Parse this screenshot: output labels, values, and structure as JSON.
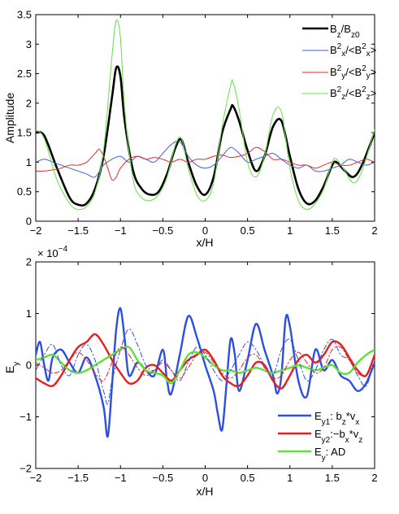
{
  "chart_data": [
    {
      "type": "line",
      "xlabel": "x/H",
      "ylabel": "Amplitude",
      "xlim": [
        -2,
        2
      ],
      "ylim": [
        0,
        3.5
      ],
      "xticks": [
        "−2",
        "−1.5",
        "−1",
        "−0.5",
        "0",
        "0.5",
        "1",
        "1.5",
        "2"
      ],
      "yticks": [
        "0",
        "0.5",
        "1",
        "1.5",
        "2",
        "2.5",
        "3",
        "3.5"
      ],
      "legend_position": "top-right",
      "series": [
        {
          "name": "Bz/Bz0",
          "color": "#000000",
          "width": 2.6,
          "x": [
            -2,
            -1.9,
            -1.75,
            -1.6,
            -1.5,
            -1.4,
            -1.3,
            -1.2,
            -1.1,
            -1.05,
            -1.0,
            -0.95,
            -0.85,
            -0.75,
            -0.65,
            -0.55,
            -0.45,
            -0.35,
            -0.28,
            -0.2,
            -0.1,
            0.0,
            0.1,
            0.2,
            0.3,
            0.33,
            0.4,
            0.5,
            0.6,
            0.7,
            0.8,
            0.9,
            1.0,
            1.1,
            1.2,
            1.3,
            1.4,
            1.5,
            1.55,
            1.65,
            1.75,
            1.85,
            2.0
          ],
          "y": [
            1.5,
            1.45,
            0.9,
            0.4,
            0.28,
            0.3,
            0.55,
            1.1,
            2.1,
            2.6,
            2.45,
            1.7,
            0.85,
            0.55,
            0.45,
            0.5,
            0.8,
            1.25,
            1.38,
            1.0,
            0.6,
            0.45,
            0.75,
            1.5,
            1.9,
            1.95,
            1.7,
            1.2,
            0.85,
            1.1,
            1.6,
            1.7,
            1.1,
            0.55,
            0.3,
            0.35,
            0.6,
            0.95,
            1.0,
            0.85,
            0.75,
            0.95,
            1.5
          ]
        },
        {
          "name": "Bx²/<Bx²>",
          "color": "#3b5fe0",
          "width": 1,
          "x": [
            -2,
            -1.9,
            -1.8,
            -1.7,
            -1.6,
            -1.5,
            -1.4,
            -1.3,
            -1.2,
            -1.1,
            -1.0,
            -0.9,
            -0.8,
            -0.7,
            -0.6,
            -0.5,
            -0.4,
            -0.3,
            -0.2,
            -0.1,
            0.0,
            0.1,
            0.2,
            0.3,
            0.4,
            0.5,
            0.6,
            0.7,
            0.8,
            0.9,
            1.0,
            1.1,
            1.2,
            1.3,
            1.4,
            1.5,
            1.6,
            1.7,
            1.8,
            1.9,
            2.0
          ],
          "y": [
            1.0,
            1.05,
            1.0,
            0.95,
            0.9,
            0.85,
            0.8,
            0.75,
            0.95,
            1.05,
            1.1,
            1.0,
            1.1,
            1.05,
            1.0,
            1.15,
            1.3,
            1.35,
            1.1,
            0.95,
            0.9,
            0.95,
            1.1,
            1.25,
            1.15,
            1.0,
            1.05,
            1.1,
            1.15,
            1.05,
            0.95,
            0.9,
            0.95,
            0.85,
            0.85,
            0.9,
            0.95,
            1.05,
            1.0,
            0.95,
            1.0
          ]
        },
        {
          "name": "By²/<By²>",
          "color": "#e82828",
          "width": 1,
          "x": [
            -2,
            -1.9,
            -1.8,
            -1.7,
            -1.6,
            -1.5,
            -1.4,
            -1.3,
            -1.25,
            -1.2,
            -1.15,
            -1.1,
            -1.05,
            -1.0,
            -0.9,
            -0.8,
            -0.7,
            -0.6,
            -0.5,
            -0.4,
            -0.3,
            -0.2,
            -0.1,
            0.0,
            0.1,
            0.2,
            0.3,
            0.4,
            0.5,
            0.6,
            0.7,
            0.8,
            0.9,
            1.0,
            1.1,
            1.2,
            1.3,
            1.4,
            1.5,
            1.6,
            1.7,
            1.8,
            1.9,
            2.0
          ],
          "y": [
            0.85,
            0.85,
            0.87,
            0.9,
            0.95,
            0.95,
            1.0,
            1.15,
            1.22,
            1.1,
            0.9,
            0.7,
            0.75,
            0.9,
            1.05,
            1.1,
            1.05,
            1.08,
            1.05,
            1.0,
            1.05,
            1.0,
            1.05,
            1.05,
            1.1,
            1.12,
            1.08,
            1.1,
            1.15,
            1.25,
            1.18,
            1.05,
            1.05,
            1.0,
            0.95,
            0.95,
            0.9,
            0.95,
            1.0,
            0.95,
            0.95,
            1.0,
            1.05,
            1.0
          ]
        },
        {
          "name": "Bz²/<Bz²>",
          "color": "#66e04a",
          "width": 1,
          "x": [
            -2,
            -1.9,
            -1.75,
            -1.6,
            -1.5,
            -1.4,
            -1.3,
            -1.2,
            -1.1,
            -1.05,
            -1.0,
            -0.95,
            -0.85,
            -0.75,
            -0.65,
            -0.55,
            -0.45,
            -0.35,
            -0.28,
            -0.2,
            -0.1,
            0.0,
            0.1,
            0.2,
            0.3,
            0.33,
            0.4,
            0.5,
            0.6,
            0.7,
            0.8,
            0.9,
            1.0,
            1.1,
            1.2,
            1.3,
            1.4,
            1.5,
            1.55,
            1.65,
            1.75,
            1.85,
            2.0
          ],
          "y": [
            1.55,
            1.4,
            0.7,
            0.3,
            0.2,
            0.25,
            0.5,
            1.2,
            2.8,
            3.4,
            3.1,
            1.9,
            0.7,
            0.4,
            0.35,
            0.45,
            0.75,
            1.3,
            1.4,
            0.9,
            0.45,
            0.35,
            0.65,
            1.6,
            2.3,
            2.35,
            1.9,
            1.0,
            0.75,
            1.1,
            1.8,
            1.85,
            0.9,
            0.35,
            0.2,
            0.3,
            0.55,
            1.0,
            1.05,
            0.85,
            0.65,
            0.85,
            1.55
          ]
        }
      ]
    },
    {
      "type": "line",
      "xlabel": "x/H",
      "ylabel": "E",
      "ylabel_sub": "y",
      "xlim": [
        -2,
        2
      ],
      "ylim": [
        -2,
        2
      ],
      "scale_label": "× 10",
      "scale_exp": "−4",
      "xticks": [
        "−2",
        "−1.5",
        "−1",
        "−0.5",
        "0",
        "0.5",
        "1",
        "1.5",
        "2"
      ],
      "yticks": [
        "−2",
        "−1",
        "0",
        "1",
        "2"
      ],
      "legend_position": "bottom-right",
      "series": [
        {
          "name": "Ey1: bz*vx",
          "color": "#2b4fe0",
          "width": 2.4,
          "x": [
            -2,
            -1.95,
            -1.9,
            -1.85,
            -1.8,
            -1.7,
            -1.6,
            -1.5,
            -1.4,
            -1.3,
            -1.2,
            -1.15,
            -1.1,
            -1.05,
            -1.0,
            -0.95,
            -0.9,
            -0.8,
            -0.7,
            -0.6,
            -0.5,
            -0.45,
            -0.4,
            -0.3,
            -0.2,
            -0.1,
            0.0,
            0.1,
            0.15,
            0.2,
            0.25,
            0.3,
            0.35,
            0.4,
            0.5,
            0.6,
            0.7,
            0.8,
            0.85,
            0.9,
            0.95,
            1.0,
            1.1,
            1.2,
            1.3,
            1.4,
            1.5,
            1.6,
            1.7,
            1.8,
            1.9,
            2.0
          ],
          "y": [
            0.2,
            0.45,
            0.0,
            -0.3,
            0.15,
            0.3,
            0.05,
            -0.15,
            0.15,
            -0.2,
            -0.8,
            -1.38,
            -0.4,
            0.7,
            1.1,
            0.5,
            -0.2,
            0.05,
            -0.1,
            -0.2,
            0.3,
            -0.3,
            -0.55,
            0.2,
            0.95,
            0.55,
            0.0,
            -0.5,
            -0.95,
            -1.25,
            -0.4,
            0.5,
            0.2,
            -0.5,
            0.1,
            0.8,
            0.3,
            -0.2,
            -0.55,
            -0.2,
            0.9,
            0.75,
            -0.3,
            -0.6,
            0.3,
            -0.1,
            0.1,
            -0.2,
            -0.3,
            -0.5,
            -0.35,
            0.05
          ]
        },
        {
          "name": "Ey2: −bx*vz",
          "color": "#e61e1e",
          "width": 2.4,
          "x": [
            -2,
            -1.9,
            -1.8,
            -1.7,
            -1.6,
            -1.5,
            -1.4,
            -1.3,
            -1.2,
            -1.1,
            -1.0,
            -0.9,
            -0.8,
            -0.7,
            -0.6,
            -0.5,
            -0.4,
            -0.3,
            -0.2,
            -0.1,
            0.0,
            0.1,
            0.2,
            0.3,
            0.4,
            0.5,
            0.6,
            0.7,
            0.8,
            0.9,
            1.0,
            1.1,
            1.2,
            1.3,
            1.4,
            1.5,
            1.6,
            1.7,
            1.8,
            1.9,
            2.0
          ],
          "y": [
            -0.25,
            -0.35,
            -0.4,
            -0.2,
            0.1,
            0.35,
            0.45,
            0.6,
            0.4,
            0.1,
            -0.15,
            -0.35,
            -0.3,
            -0.05,
            0.0,
            -0.15,
            -0.3,
            -0.1,
            0.1,
            0.2,
            0.3,
            0.1,
            -0.2,
            -0.35,
            -0.4,
            -0.2,
            0.05,
            0.0,
            -0.3,
            -0.45,
            -0.2,
            0.1,
            0.2,
            0.05,
            0.2,
            0.45,
            0.4,
            0.15,
            -0.1,
            -0.2,
            0.2
          ]
        },
        {
          "name": "Ey: AD",
          "color": "#5ee03a",
          "width": 2.4,
          "x": [
            -2,
            -1.9,
            -1.8,
            -1.7,
            -1.6,
            -1.5,
            -1.4,
            -1.3,
            -1.2,
            -1.1,
            -1.0,
            -0.9,
            -0.8,
            -0.7,
            -0.6,
            -0.5,
            -0.4,
            -0.3,
            -0.2,
            -0.1,
            0.0,
            0.1,
            0.2,
            0.3,
            0.4,
            0.5,
            0.6,
            0.7,
            0.8,
            0.9,
            1.0,
            1.1,
            1.2,
            1.3,
            1.4,
            1.5,
            1.6,
            1.7,
            1.8,
            1.9,
            2.0
          ],
          "y": [
            0.1,
            0.15,
            0.2,
            0.05,
            -0.1,
            -0.15,
            -0.1,
            0.0,
            0.1,
            0.2,
            0.3,
            0.35,
            0.1,
            -0.1,
            -0.15,
            -0.2,
            -0.35,
            -0.1,
            0.2,
            0.25,
            0.15,
            0.0,
            -0.1,
            -0.1,
            -0.15,
            -0.1,
            -0.05,
            -0.1,
            -0.15,
            -0.1,
            -0.05,
            0.0,
            -0.05,
            -0.1,
            -0.05,
            0.0,
            -0.15,
            -0.15,
            0.05,
            0.2,
            0.3
          ]
        },
        {
          "name": "",
          "color": "#2b4fe0",
          "width": 1,
          "dash": "6,3,1.5,3",
          "x": [
            -2,
            -1.9,
            -1.8,
            -1.7,
            -1.6,
            -1.5,
            -1.4,
            -1.3,
            -1.2,
            -1.15,
            -1.1,
            -1.0,
            -0.9,
            -0.8,
            -0.7,
            -0.6,
            -0.5,
            -0.4,
            -0.3,
            -0.2,
            -0.1,
            0.0,
            0.1,
            0.2,
            0.3,
            0.4,
            0.5,
            0.6,
            0.7,
            0.8,
            0.9,
            1.0,
            1.1,
            1.2,
            1.3,
            1.4,
            1.5,
            1.6,
            1.7,
            1.8,
            1.9,
            2.0
          ],
          "y": [
            -0.1,
            0.2,
            0.4,
            0.0,
            -0.2,
            0.2,
            0.4,
            0.1,
            -0.5,
            -0.75,
            -0.3,
            0.3,
            0.7,
            0.4,
            0.0,
            -0.1,
            0.1,
            -0.1,
            -0.3,
            0.05,
            0.35,
            0.2,
            -0.1,
            -0.3,
            -0.1,
            0.2,
            0.45,
            0.3,
            0.0,
            -0.2,
            0.3,
            0.5,
            0.1,
            -0.3,
            -0.1,
            0.3,
            0.5,
            0.2,
            0.1,
            -0.2,
            -0.4,
            0.1
          ]
        },
        {
          "name": "",
          "color": "#e61e1e",
          "width": 1,
          "dash": "6,3,1.5,3",
          "x": [
            -2,
            -1.9,
            -1.8,
            -1.7,
            -1.6,
            -1.5,
            -1.4,
            -1.3,
            -1.2,
            -1.1,
            -1.0,
            -0.9,
            -0.8,
            -0.7,
            -0.6,
            -0.5,
            -0.4,
            -0.3,
            -0.2,
            -0.1,
            0.0,
            0.1,
            0.2,
            0.3,
            0.4,
            0.5,
            0.6,
            0.7,
            0.8,
            0.9,
            1.0,
            1.1,
            1.2,
            1.3,
            1.4,
            1.5,
            1.6,
            1.7,
            1.8,
            1.9,
            2.0
          ],
          "y": [
            0.05,
            -0.05,
            -0.15,
            -0.1,
            0.1,
            0.25,
            0.1,
            -0.15,
            -0.3,
            0.05,
            0.35,
            0.2,
            -0.05,
            -0.2,
            -0.1,
            0.05,
            -0.1,
            -0.25,
            -0.05,
            0.2,
            0.25,
            0.05,
            -0.15,
            -0.25,
            -0.1,
            0.15,
            0.2,
            -0.05,
            -0.25,
            -0.2,
            0.1,
            0.25,
            0.05,
            -0.15,
            -0.05,
            0.3,
            0.35,
            0.1,
            -0.15,
            -0.2,
            0.05
          ]
        }
      ]
    }
  ]
}
